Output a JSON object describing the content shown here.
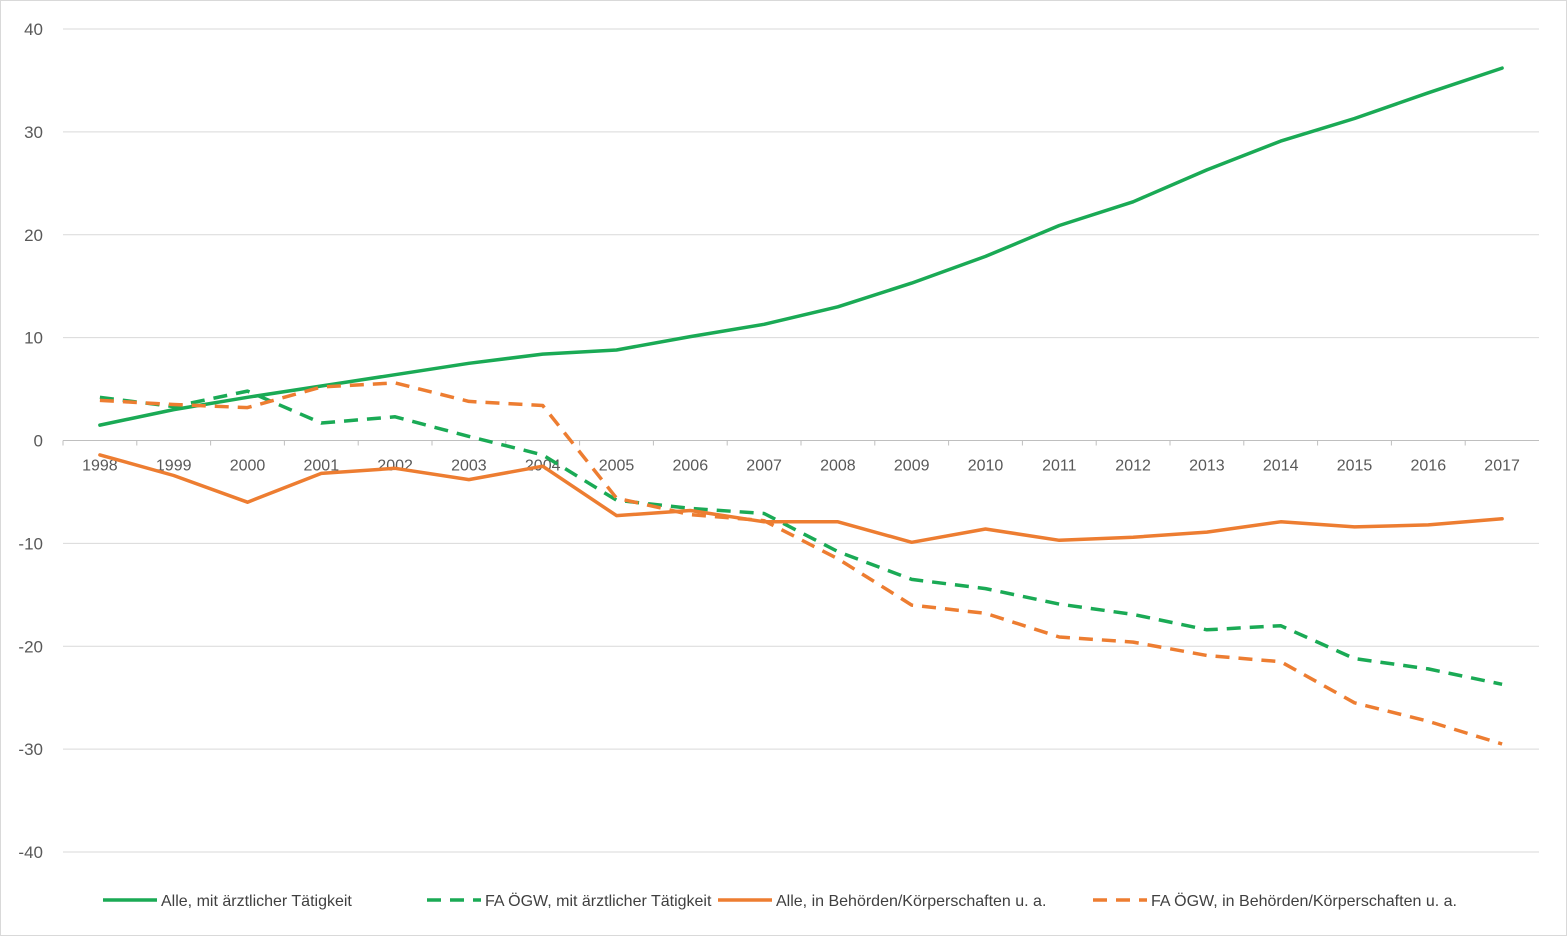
{
  "chart_data": {
    "type": "line",
    "title": "",
    "xlabel": "",
    "ylabel": "",
    "ylim": [
      -40,
      40
    ],
    "yticks": [
      "40",
      "30",
      "20",
      "10",
      "0",
      "-10",
      "-20",
      "-30",
      "-40"
    ],
    "categories": [
      "1998",
      "1999",
      "2000",
      "2001",
      "2002",
      "2003",
      "2004",
      "2005",
      "2006",
      "2007",
      "2008",
      "2009",
      "2010",
      "2011",
      "2012",
      "2013",
      "2014",
      "2015",
      "2016",
      "2017"
    ],
    "grid": true,
    "legend_position": "bottom",
    "series": [
      {
        "name": "Alle, mit ärztlicher Tätigkeit",
        "color": "#1aaa55",
        "dashed": false,
        "values": [
          1.5,
          3.0,
          4.2,
          5.3,
          6.4,
          7.5,
          8.4,
          8.8,
          10.1,
          11.3,
          13.0,
          15.3,
          17.9,
          20.9,
          23.2,
          26.3,
          29.1,
          31.3,
          33.8,
          36.2
        ]
      },
      {
        "name": "FA ÖGW, mit ärztlicher Tätigkeit",
        "color": "#1aaa55",
        "dashed": true,
        "values": [
          4.2,
          3.3,
          4.8,
          1.7,
          2.3,
          0.4,
          -1.4,
          -5.8,
          -6.6,
          -7.1,
          -10.8,
          -13.5,
          -14.4,
          -15.9,
          -16.9,
          -18.4,
          -18.0,
          -21.2,
          -22.2,
          -23.7
        ]
      },
      {
        "name": "Alle, in Behörden/Körperschaften u. a.",
        "color": "#ed7d31",
        "dashed": false,
        "values": [
          -1.4,
          -3.4,
          -6.0,
          -3.2,
          -2.7,
          -3.8,
          -2.5,
          -7.3,
          -6.8,
          -7.9,
          -7.9,
          -9.9,
          -8.6,
          -9.7,
          -9.4,
          -8.9,
          -7.9,
          -8.4,
          -8.2,
          -7.6
        ]
      },
      {
        "name": "FA ÖGW, in Behörden/Körperschaften u. a.",
        "color": "#ed7d31",
        "dashed": true,
        "values": [
          3.9,
          3.5,
          3.2,
          5.2,
          5.6,
          3.8,
          3.4,
          -5.6,
          -7.2,
          -7.8,
          -11.5,
          -16.0,
          -16.8,
          -19.1,
          -19.6,
          -20.9,
          -21.5,
          -25.5,
          -27.3,
          -29.5
        ]
      }
    ]
  }
}
